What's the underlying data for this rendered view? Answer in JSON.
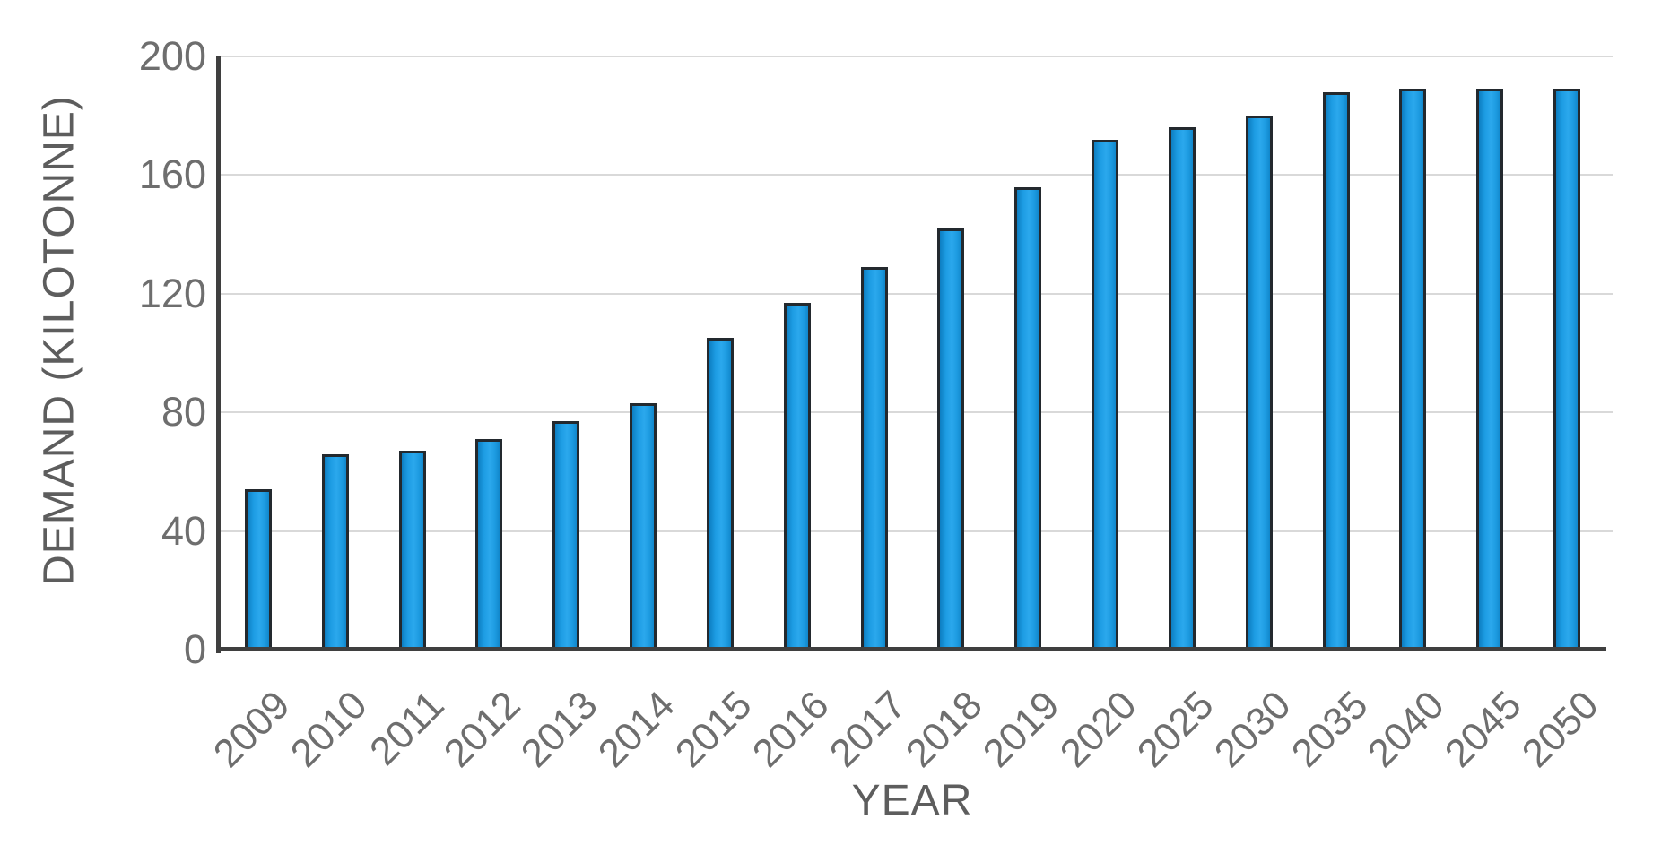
{
  "chart_data": {
    "type": "bar",
    "title": "",
    "xlabel": "YEAR",
    "ylabel": "DEMAND (KILOTONNE)",
    "categories": [
      "2009",
      "2010",
      "2011",
      "2012",
      "2013",
      "2014",
      "2015",
      "2016",
      "2017",
      "2018",
      "2019",
      "2020",
      "2025",
      "2030",
      "2035",
      "2040",
      "2045",
      "2050"
    ],
    "values": [
      54,
      66,
      67,
      71,
      77,
      83,
      105,
      117,
      129,
      142,
      156,
      172,
      176,
      180,
      188,
      189,
      189,
      189
    ],
    "ylim": [
      0,
      200
    ],
    "yticks": [
      0,
      40,
      80,
      120,
      160,
      200
    ],
    "grid": true,
    "legend": false,
    "bar_fill_color": "#1d9ce3",
    "bar_border_color": "#23292e",
    "gridline_color": "#d9d9d9",
    "axis_line_color": "#3f3f3f",
    "label_color": "#6e6e6e"
  }
}
